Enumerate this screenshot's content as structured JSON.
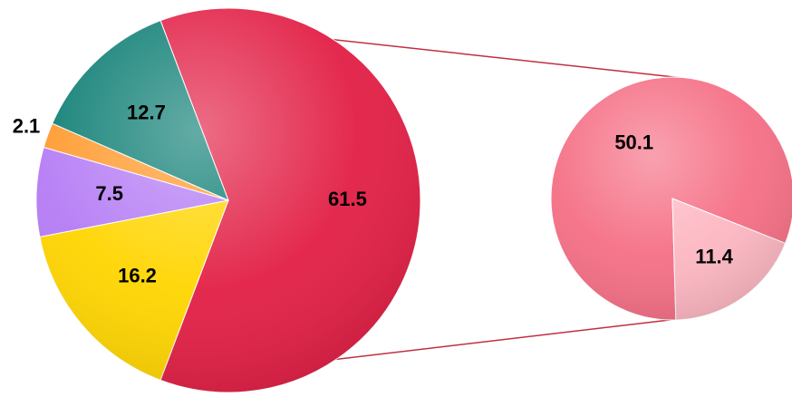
{
  "chart_data": {
    "type": "pie",
    "subtype": "pie-of-pie",
    "title": "",
    "main_pie": {
      "slices": [
        {
          "label": "61.5",
          "value": 61.5,
          "color": "#e21f45",
          "split": true
        },
        {
          "label": "16.2",
          "value": 16.2,
          "color": "#ffd500"
        },
        {
          "label": "7.5",
          "value": 7.5,
          "color": "#b57cf5"
        },
        {
          "label": "2.1",
          "value": 2.1,
          "color": "#ff9a2e"
        },
        {
          "label": "12.7",
          "value": 12.7,
          "color": "#0f7f75"
        }
      ]
    },
    "secondary_pie": {
      "slices": [
        {
          "label": "50.1",
          "value": 50.1,
          "color": "#f56f85"
        },
        {
          "label": "11.4",
          "value": 11.4,
          "color": "#fdb7c2"
        }
      ]
    },
    "connector_color": "#c0303f"
  }
}
